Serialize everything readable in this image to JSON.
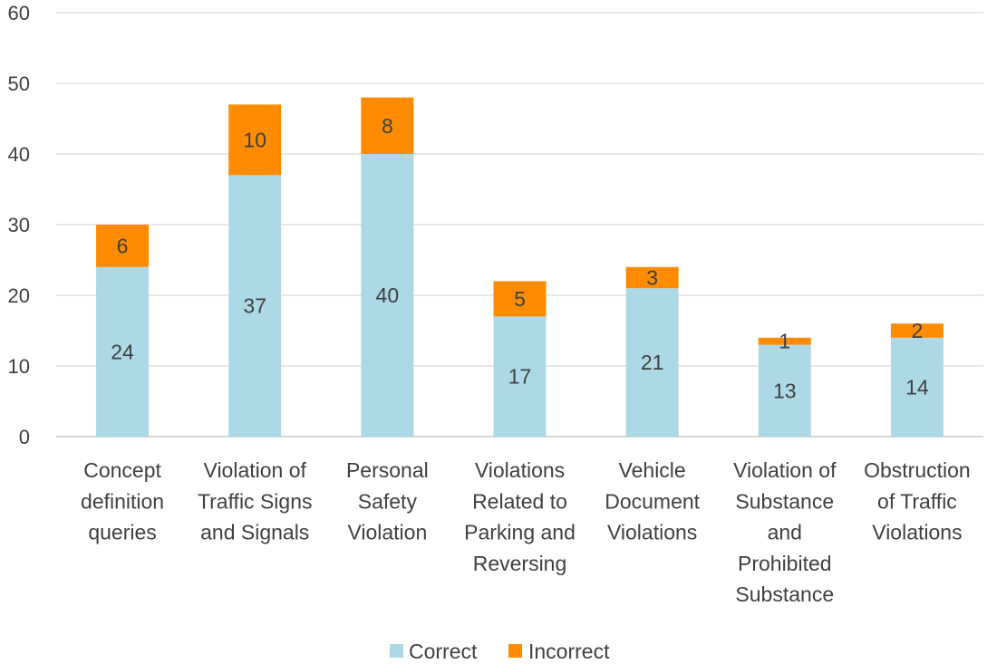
{
  "chart_data": {
    "type": "bar",
    "stacked": true,
    "title": "",
    "xlabel": "",
    "ylabel": "",
    "ylim": [
      0,
      60
    ],
    "yticks": [
      0,
      10,
      20,
      30,
      40,
      50,
      60
    ],
    "grid": true,
    "legend_position": "bottom",
    "categories": [
      [
        "Concept",
        "definition",
        "queries"
      ],
      [
        "Violation of",
        "Traffic Signs",
        "and Signals"
      ],
      [
        "Personal",
        "Safety",
        "Violation"
      ],
      [
        "Violations",
        "Related to",
        "Parking and",
        "Reversing"
      ],
      [
        "Vehicle",
        "Document",
        "Violations"
      ],
      [
        "Violation of",
        "Substance",
        "and",
        "Prohibited",
        "Substance"
      ],
      [
        "Obstruction",
        "of Traffic",
        "Violations"
      ]
    ],
    "series": [
      {
        "name": "Correct",
        "color": "#add8e6",
        "values": [
          24,
          37,
          40,
          17,
          21,
          13,
          14
        ]
      },
      {
        "name": "Incorrect",
        "color": "#ff8c00",
        "values": [
          6,
          10,
          8,
          5,
          3,
          1,
          2
        ]
      }
    ]
  }
}
